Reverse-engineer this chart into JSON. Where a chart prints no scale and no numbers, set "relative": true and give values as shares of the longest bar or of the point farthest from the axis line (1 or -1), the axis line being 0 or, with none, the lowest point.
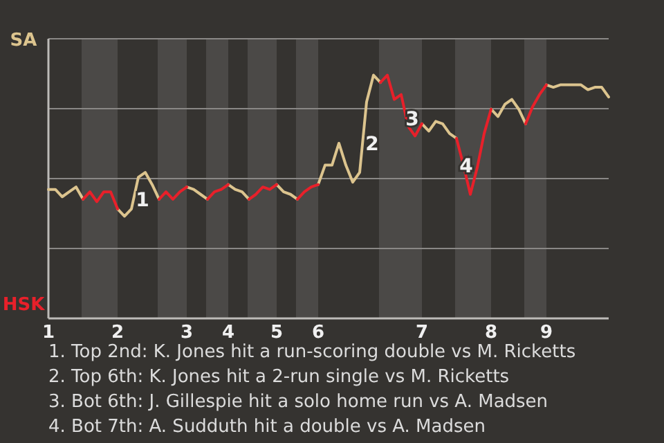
{
  "chart_data": {
    "type": "line",
    "relative": true,
    "grid": "y",
    "categories": [
      "1",
      null,
      null,
      null,
      null,
      null,
      null,
      null,
      null,
      null,
      "2",
      null,
      null,
      null,
      null,
      null,
      null,
      null,
      null,
      null,
      "3",
      null,
      null,
      null,
      null,
      null,
      "4",
      null,
      null,
      null,
      null,
      null,
      null,
      "5",
      null,
      null,
      null,
      null,
      null,
      "6",
      null,
      null,
      null,
      null,
      null,
      null,
      null,
      null,
      null,
      null,
      null,
      null,
      null,
      null,
      "7",
      null,
      null,
      null,
      null,
      null,
      null,
      null,
      null,
      null,
      "8",
      null,
      null,
      null,
      null,
      null,
      null,
      null,
      "9",
      null,
      null,
      null,
      null,
      null,
      null,
      null,
      null,
      null
    ],
    "series": [
      {
        "color": "#dcc48e",
        "values": [
          0.53,
          0.53,
          0.5,
          0.52,
          0.54,
          0.49,
          null,
          null,
          null,
          null,
          0.45,
          0.42,
          0.45,
          0.58,
          0.6,
          0.55,
          0.49,
          null,
          null,
          null,
          0.54,
          0.53,
          0.51,
          0.49,
          null,
          null,
          0.55,
          0.53,
          0.52,
          0.49,
          null,
          null,
          null,
          0.55,
          0.52,
          0.51,
          0.49,
          null,
          null,
          0.55,
          0.63,
          0.63,
          0.72,
          0.63,
          0.56,
          0.6,
          0.89,
          1,
          0.97,
          null,
          null,
          null,
          null,
          null,
          0.8,
          0.77,
          0.81,
          0.8,
          0.76,
          0.74,
          null,
          null,
          null,
          null,
          0.86,
          0.83,
          0.88,
          0.9,
          0.86,
          0.8,
          null,
          null,
          0.96,
          0.95,
          0.96,
          0.96,
          0.96,
          0.96,
          0.94,
          0.95,
          0.95,
          0.91
        ]
      },
      {
        "color": "#e8202a",
        "values": [
          null,
          null,
          null,
          null,
          null,
          0.49,
          0.52,
          0.48,
          0.52,
          0.52,
          0.45,
          null,
          null,
          null,
          null,
          null,
          0.49,
          0.52,
          0.49,
          0.52,
          0.54,
          null,
          null,
          0.49,
          0.52,
          0.53,
          0.55,
          null,
          null,
          0.49,
          0.51,
          0.54,
          0.53,
          0.55,
          null,
          null,
          0.49,
          0.52,
          0.54,
          0.55,
          null,
          null,
          null,
          null,
          null,
          null,
          null,
          null,
          0.97,
          1,
          0.9,
          0.92,
          0.79,
          0.75,
          0.8,
          null,
          null,
          null,
          null,
          0.74,
          0.63,
          0.51,
          0.62,
          0.76,
          0.86,
          null,
          null,
          null,
          null,
          0.8,
          0.87,
          0.92,
          0.96,
          null,
          null,
          null,
          null,
          null,
          null,
          null,
          null,
          null
        ]
      }
    ],
    "annotations": [
      "SA",
      "HSK",
      "1",
      "2",
      "3",
      "4",
      "1. Top 2nd: K. Jones hit a run-scoring double vs M. Ricketts",
      "2. Top 6th: K. Jones hit a 2-run single vs M. Ricketts",
      "3. Bot 6th: J. Gillespie hit a solo home run vs A. Madsen",
      "4. Bot 7th: A. Sudduth hit a double vs A. Madsen"
    ]
  }
}
